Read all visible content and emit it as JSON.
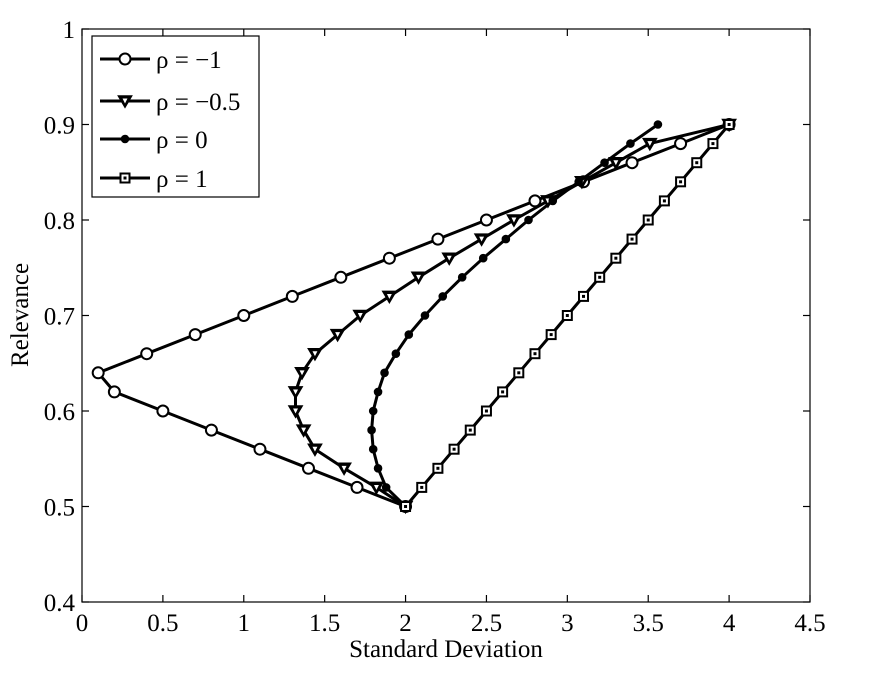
{
  "chart_data": {
    "type": "line",
    "title": "",
    "xlabel": "Standard Deviation",
    "ylabel": "Relevance",
    "xlim": [
      0,
      4.5
    ],
    "ylim": [
      0.4,
      1
    ],
    "xticks": [
      "0",
      "0.5",
      "1",
      "1.5",
      "2",
      "2.5",
      "3",
      "3.5",
      "4",
      "4.5"
    ],
    "yticks": [
      "0.4",
      "0.5",
      "0.6",
      "0.7",
      "0.8",
      "0.9",
      "1"
    ],
    "grid": false,
    "legend_position": "top-left",
    "series": [
      {
        "name": "ρ = −1",
        "marker": "circle",
        "points": [
          [
            2.0,
            0.5
          ],
          [
            1.7,
            0.52
          ],
          [
            1.4,
            0.54
          ],
          [
            1.1,
            0.56
          ],
          [
            0.8,
            0.58
          ],
          [
            0.5,
            0.6
          ],
          [
            0.2,
            0.62
          ],
          [
            0.1,
            0.64
          ],
          [
            0.4,
            0.66
          ],
          [
            0.7,
            0.68
          ],
          [
            1.0,
            0.7
          ],
          [
            1.3,
            0.72
          ],
          [
            1.6,
            0.74
          ],
          [
            1.9,
            0.76
          ],
          [
            2.2,
            0.78
          ],
          [
            2.5,
            0.8
          ],
          [
            2.8,
            0.82
          ],
          [
            3.1,
            0.84
          ],
          [
            3.4,
            0.86
          ],
          [
            3.7,
            0.88
          ],
          [
            4.0,
            0.9
          ]
        ]
      },
      {
        "name": "ρ = −0.5",
        "marker": "triangle-down",
        "points": [
          [
            2.0,
            0.5
          ],
          [
            1.82,
            0.52
          ],
          [
            1.62,
            0.54
          ],
          [
            1.44,
            0.56
          ],
          [
            1.37,
            0.58
          ],
          [
            1.32,
            0.6
          ],
          [
            1.32,
            0.62
          ],
          [
            1.36,
            0.64
          ],
          [
            1.44,
            0.66
          ],
          [
            1.58,
            0.68
          ],
          [
            1.72,
            0.7
          ],
          [
            1.9,
            0.72
          ],
          [
            2.08,
            0.74
          ],
          [
            2.27,
            0.76
          ],
          [
            2.47,
            0.78
          ],
          [
            2.67,
            0.8
          ],
          [
            2.88,
            0.82
          ],
          [
            3.09,
            0.84
          ],
          [
            3.3,
            0.86
          ],
          [
            3.51,
            0.88
          ],
          [
            4.0,
            0.9
          ]
        ]
      },
      {
        "name": "ρ = 0",
        "marker": "dot",
        "points": [
          [
            2.0,
            0.5
          ],
          [
            1.88,
            0.52
          ],
          [
            1.83,
            0.54
          ],
          [
            1.8,
            0.56
          ],
          [
            1.79,
            0.58
          ],
          [
            1.8,
            0.6
          ],
          [
            1.83,
            0.62
          ],
          [
            1.87,
            0.64
          ],
          [
            1.94,
            0.66
          ],
          [
            2.02,
            0.68
          ],
          [
            2.12,
            0.7
          ],
          [
            2.23,
            0.72
          ],
          [
            2.35,
            0.74
          ],
          [
            2.48,
            0.76
          ],
          [
            2.62,
            0.78
          ],
          [
            2.76,
            0.8
          ],
          [
            2.91,
            0.82
          ],
          [
            3.07,
            0.84
          ],
          [
            3.23,
            0.86
          ],
          [
            3.39,
            0.88
          ],
          [
            3.56,
            0.9
          ]
        ]
      },
      {
        "name": "ρ = 1",
        "marker": "square",
        "points": [
          [
            2.0,
            0.5
          ],
          [
            2.1,
            0.52
          ],
          [
            2.2,
            0.54
          ],
          [
            2.3,
            0.56
          ],
          [
            2.4,
            0.58
          ],
          [
            2.5,
            0.6
          ],
          [
            2.6,
            0.62
          ],
          [
            2.7,
            0.64
          ],
          [
            2.8,
            0.66
          ],
          [
            2.9,
            0.68
          ],
          [
            3.0,
            0.7
          ],
          [
            3.1,
            0.72
          ],
          [
            3.2,
            0.74
          ],
          [
            3.3,
            0.76
          ],
          [
            3.4,
            0.78
          ],
          [
            3.5,
            0.8
          ],
          [
            3.6,
            0.82
          ],
          [
            3.7,
            0.84
          ],
          [
            3.8,
            0.86
          ],
          [
            3.9,
            0.88
          ],
          [
            4.0,
            0.9
          ]
        ]
      }
    ]
  }
}
